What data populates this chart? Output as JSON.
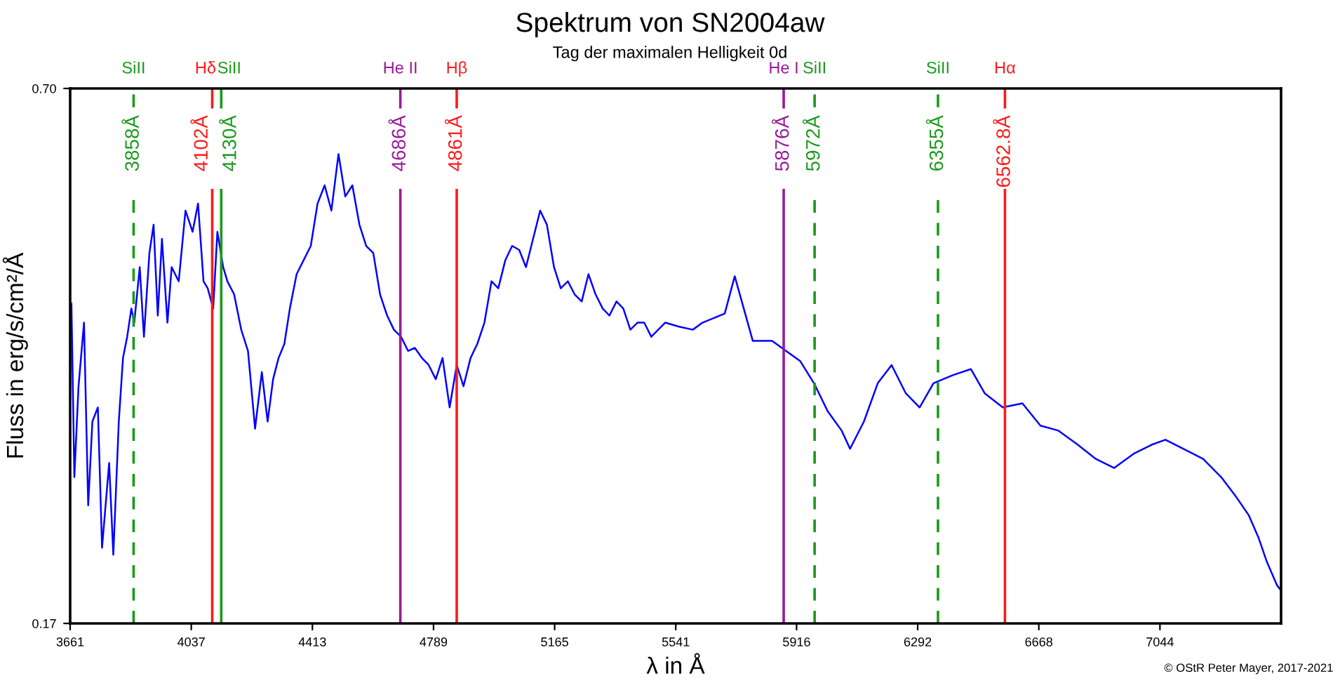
{
  "chart_data": {
    "type": "line",
    "title": "Spektrum von SN2004aw",
    "subtitle": "Tag der maximalen Helligkeit 0d",
    "xlabel": "λ in Å",
    "ylabel": "Fluss in erg/s/cm²/Å",
    "xlim": [
      3661,
      7420
    ],
    "ylim": [
      0.17,
      0.7
    ],
    "xticks": [
      3661,
      4037,
      4413,
      4789,
      5165,
      5541,
      5916,
      6292,
      6668,
      7044
    ],
    "yticks": [
      {
        "value": 0.17,
        "label": "0.17"
      },
      {
        "value": 0.7,
        "label": "0.70"
      }
    ],
    "grid": false,
    "legend": false,
    "marker": "none",
    "line_style": "solid",
    "series": [
      {
        "color": "#0000ff",
        "x": [
          3665,
          3674,
          3687,
          3704,
          3717,
          3730,
          3747,
          3760,
          3782,
          3795,
          3812,
          3825,
          3838,
          3851,
          3860,
          3877,
          3890,
          3907,
          3920,
          3933,
          3946,
          3963,
          3976,
          3998,
          4019,
          4041,
          4058,
          4075,
          4088,
          4105,
          4118,
          4136,
          4149,
          4170,
          4192,
          4213,
          4235,
          4256,
          4274,
          4291,
          4308,
          4326,
          4343,
          4364,
          4386,
          4408,
          4429,
          4451,
          4472,
          4494,
          4515,
          4537,
          4559,
          4580,
          4602,
          4623,
          4645,
          4666,
          4688,
          4710,
          4731,
          4753,
          4774,
          4796,
          4817,
          4839,
          4861,
          4882,
          4904,
          4925,
          4947,
          4969,
          4990,
          5012,
          5033,
          5055,
          5076,
          5098,
          5120,
          5141,
          5163,
          5184,
          5206,
          5227,
          5249,
          5270,
          5292,
          5314,
          5335,
          5357,
          5378,
          5400,
          5422,
          5443,
          5465,
          5508,
          5551,
          5594,
          5624,
          5693,
          5724,
          5780,
          5840,
          5883,
          5927,
          5970,
          6013,
          6056,
          6082,
          6125,
          6168,
          6211,
          6255,
          6298,
          6341,
          6401,
          6457,
          6500,
          6556,
          6617,
          6673,
          6729,
          6789,
          6845,
          6902,
          6962,
          7018,
          7061,
          7117,
          7178,
          7234,
          7277,
          7320,
          7350,
          7376,
          7407,
          7419
        ],
        "values": [
          0.487,
          0.315,
          0.405,
          0.468,
          0.287,
          0.37,
          0.384,
          0.245,
          0.329,
          0.238,
          0.37,
          0.433,
          0.454,
          0.482,
          0.468,
          0.523,
          0.454,
          0.537,
          0.565,
          0.475,
          0.551,
          0.468,
          0.523,
          0.509,
          0.579,
          0.558,
          0.586,
          0.509,
          0.502,
          0.482,
          0.558,
          0.523,
          0.509,
          0.496,
          0.461,
          0.44,
          0.363,
          0.419,
          0.37,
          0.412,
          0.433,
          0.447,
          0.482,
          0.516,
          0.53,
          0.544,
          0.586,
          0.604,
          0.579,
          0.635,
          0.593,
          0.604,
          0.565,
          0.544,
          0.537,
          0.496,
          0.475,
          0.461,
          0.454,
          0.44,
          0.443,
          0.433,
          0.426,
          0.412,
          0.433,
          0.384,
          0.426,
          0.405,
          0.433,
          0.447,
          0.468,
          0.509,
          0.502,
          0.53,
          0.544,
          0.54,
          0.523,
          0.551,
          0.579,
          0.565,
          0.523,
          0.502,
          0.509,
          0.496,
          0.489,
          0.516,
          0.496,
          0.482,
          0.475,
          0.489,
          0.482,
          0.461,
          0.468,
          0.468,
          0.454,
          0.468,
          0.464,
          0.461,
          0.468,
          0.477,
          0.514,
          0.45,
          0.45,
          0.44,
          0.43,
          0.408,
          0.38,
          0.361,
          0.343,
          0.37,
          0.408,
          0.426,
          0.398,
          0.384,
          0.408,
          0.416,
          0.422,
          0.398,
          0.384,
          0.388,
          0.366,
          0.361,
          0.347,
          0.333,
          0.324,
          0.338,
          0.347,
          0.352,
          0.343,
          0.333,
          0.315,
          0.297,
          0.277,
          0.255,
          0.231,
          0.208,
          0.203
        ]
      }
    ],
    "ref_lines": [
      {
        "axis": "x",
        "value": 3858,
        "label": "3858Å",
        "color": "#1a9a1a",
        "line_style": "dashed"
      },
      {
        "axis": "x",
        "value": 4102,
        "label": "4102Å",
        "color": "#ff1a1a",
        "line_style": "solid"
      },
      {
        "axis": "x",
        "value": 4130,
        "label": "4130Å",
        "color": "#1a9a1a",
        "line_style": "solid"
      },
      {
        "axis": "x",
        "value": 4686,
        "label": "4686Å",
        "color": "#9a1a9a",
        "line_style": "solid"
      },
      {
        "axis": "x",
        "value": 4861,
        "label": "4861Å",
        "color": "#ff1a1a",
        "line_style": "solid"
      },
      {
        "axis": "x",
        "value": 5876,
        "label": "5876Å",
        "color": "#9a1a9a",
        "line_style": "solid"
      },
      {
        "axis": "x",
        "value": 5972,
        "label": "5972Å",
        "color": "#1a9a1a",
        "line_style": "dashed"
      },
      {
        "axis": "x",
        "value": 6355,
        "label": "6355Å",
        "color": "#1a9a1a",
        "line_style": "dashed"
      },
      {
        "axis": "x",
        "value": 6562.8,
        "label": "6562.8Å",
        "color": "#ff1a1a",
        "line_style": "solid"
      }
    ],
    "annotations": [
      "SiII",
      "Hδ",
      "SiII",
      "He II",
      "Hβ",
      "He I",
      "SiII",
      "SiII",
      "Hα",
      "© OStR Peter Mayer, 2017-2021"
    ]
  }
}
